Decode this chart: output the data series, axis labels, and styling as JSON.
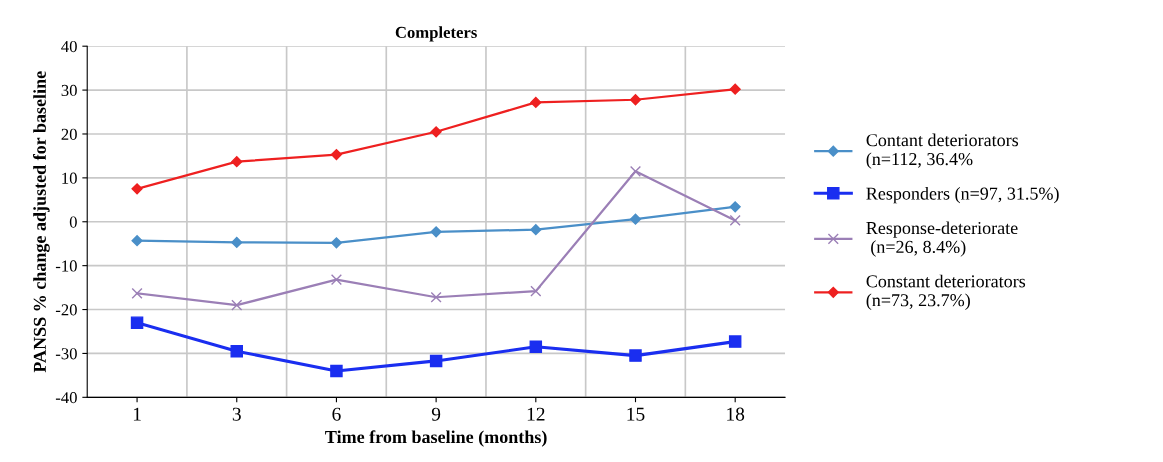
{
  "chart_data": {
    "type": "line",
    "title": "Completers",
    "xlabel": "Time from baseline (months)",
    "ylabel": "PANSS % change adjusted for baseline",
    "categories": [
      "1",
      "3",
      "6",
      "9",
      "12",
      "15",
      "18"
    ],
    "ylim": [
      -40,
      40
    ],
    "yticks": [
      -40,
      -30,
      -20,
      -10,
      0,
      10,
      20,
      30,
      40
    ],
    "grid": true,
    "legend": "right",
    "series": [
      {
        "name": "Contant deteriorators\n(n=112, 36.4%",
        "color": "#4a8fc8",
        "marker": "diamond",
        "values": [
          -4.3,
          -4.7,
          -4.8,
          -2.3,
          -1.8,
          0.6,
          3.4
        ]
      },
      {
        "name": "Responders (n=97, 31.5%)",
        "color": "#1a2ef0",
        "marker": "square",
        "values": [
          -23,
          -29.5,
          -34,
          -31.7,
          -28.5,
          -30.5,
          -27.3
        ]
      },
      {
        "name": "Response-deteriorate\n (n=26, 8.4%)",
        "color": "#9b7fb6",
        "marker": "cross",
        "values": [
          -16.3,
          -19,
          -13.2,
          -17.2,
          -15.8,
          11.5,
          0.3
        ]
      },
      {
        "name": "Constant deteriorators\n(n=73, 23.7%)",
        "color": "#ee2020",
        "marker": "diamond",
        "values": [
          7.5,
          13.7,
          15.3,
          20.5,
          27.2,
          27.8,
          30.2
        ]
      }
    ]
  }
}
